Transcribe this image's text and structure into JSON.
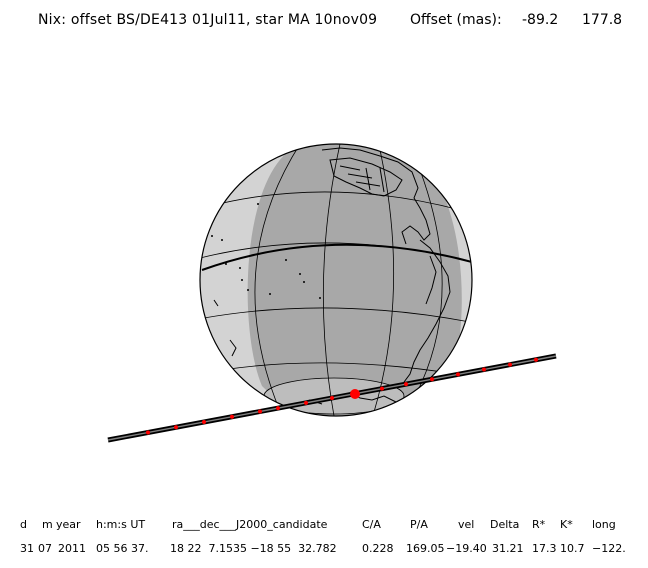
{
  "header": {
    "title": "Nix: offset BS/DE413 01Jul11, star MA 10nov09",
    "offset_label": "Offset (mas):",
    "offset_ra": "-89.2",
    "offset_dec": "177.8"
  },
  "colors": {
    "night": "#a8a8a8",
    "day": "#d3d3d3",
    "outline": "#000000",
    "track_dots": "#ff0000",
    "track_line": "#000000"
  },
  "table": {
    "headers": [
      "d",
      "m",
      "year",
      "h:m:s UT",
      "ra___dec___J2000_candidate",
      "C/A",
      "P/A",
      "vel",
      "Delta",
      "R*",
      "K*",
      "long"
    ],
    "values": [
      "31",
      "07",
      "2011",
      "05 56 37.",
      "18 22  7.1535 −18 55  32.782",
      "0.228",
      "169.05",
      "−19.40",
      "31.21",
      "17.3",
      "10.7",
      "−122."
    ]
  }
}
